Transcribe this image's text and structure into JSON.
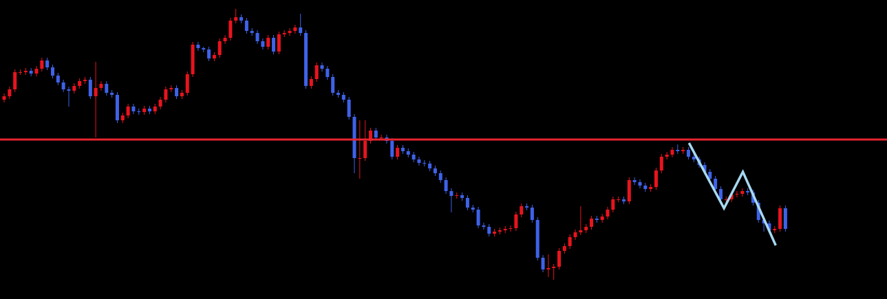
{
  "chart_data": {
    "type": "candlestick",
    "xlim": [
      -0.77,
      163.85
    ],
    "ylim": [
      0,
      435
    ],
    "up_color": "#e8141e",
    "down_color": "#3e62e8",
    "background": "#000000",
    "open": [
      290,
      295,
      305,
      330,
      330,
      332,
      328,
      335,
      347,
      337,
      325,
      315,
      305,
      303,
      310,
      317,
      319,
      295,
      307,
      313,
      300,
      297,
      260,
      267,
      280,
      273,
      272,
      277,
      273,
      280,
      290,
      305,
      307,
      295,
      300,
      327,
      370,
      365,
      363,
      350,
      355,
      375,
      380,
      405,
      410,
      405,
      390,
      387,
      375,
      367,
      380,
      360,
      385,
      387,
      390,
      395,
      387,
      310,
      320,
      340,
      335,
      323,
      300,
      297,
      290,
      265,
      205,
      205,
      230,
      245,
      235,
      235,
      230,
      207,
      220,
      215,
      210,
      203,
      198,
      197,
      190,
      183,
      173,
      157,
      150,
      151,
      147,
      133,
      130,
      107,
      105,
      95,
      98,
      100,
      102,
      103,
      123,
      135,
      133,
      115,
      60,
      43,
      45,
      47,
      70,
      77,
      90,
      97,
      100,
      105,
      117,
      115,
      120,
      130,
      145,
      145,
      142,
      173,
      170,
      165,
      160,
      163,
      187,
      207,
      210,
      217,
      215,
      217,
      207,
      203,
      195,
      185,
      175,
      160,
      145,
      145,
      152,
      153,
      157,
      155,
      140,
      115,
      110,
      100,
      102,
      132
    ],
    "high": [
      299,
      309,
      334,
      334,
      336,
      336,
      339,
      351,
      351,
      341,
      329,
      319,
      309,
      314,
      321,
      323,
      323,
      345,
      317,
      317,
      304,
      301,
      271,
      284,
      284,
      277,
      281,
      281,
      284,
      294,
      309,
      311,
      311,
      304,
      331,
      374,
      374,
      367,
      367,
      359,
      379,
      384,
      409,
      422,
      414,
      409,
      394,
      391,
      379,
      384,
      384,
      389,
      391,
      394,
      399,
      415,
      391,
      324,
      344,
      344,
      339,
      327,
      304,
      301,
      294,
      269,
      260,
      260,
      249,
      249,
      239,
      239,
      234,
      224,
      224,
      219,
      214,
      207,
      202,
      201,
      194,
      187,
      177,
      161,
      155,
      155,
      151,
      137,
      134,
      111,
      109,
      102,
      104,
      106,
      107,
      127,
      139,
      139,
      137,
      119,
      64,
      65,
      51,
      74,
      81,
      94,
      101,
      135,
      109,
      121,
      121,
      124,
      134,
      149,
      149,
      149,
      177,
      177,
      174,
      169,
      167,
      191,
      211,
      214,
      221,
      225,
      221,
      221,
      211,
      207,
      199,
      189,
      179,
      164,
      149,
      156,
      157,
      161,
      161,
      159,
      144,
      119,
      114,
      106,
      136,
      136
    ],
    "low": [
      286,
      291,
      301,
      326,
      326,
      324,
      324,
      331,
      333,
      321,
      311,
      301,
      280,
      299,
      306,
      313,
      291,
      235,
      303,
      296,
      293,
      256,
      256,
      263,
      269,
      268,
      268,
      269,
      269,
      276,
      286,
      301,
      291,
      291,
      296,
      323,
      361,
      359,
      346,
      346,
      351,
      371,
      376,
      401,
      401,
      386,
      383,
      371,
      363,
      363,
      356,
      356,
      381,
      383,
      386,
      383,
      306,
      306,
      316,
      331,
      319,
      296,
      293,
      286,
      261,
      183,
      175,
      201,
      226,
      231,
      231,
      226,
      203,
      203,
      211,
      206,
      199,
      194,
      193,
      186,
      179,
      169,
      153,
      126,
      146,
      143,
      129,
      126,
      103,
      101,
      91,
      91,
      94,
      96,
      98,
      99,
      119,
      129,
      111,
      56,
      39,
      32,
      28,
      43,
      66,
      73,
      86,
      93,
      96,
      101,
      111,
      111,
      116,
      126,
      141,
      138,
      138,
      166,
      161,
      156,
      156,
      159,
      183,
      203,
      206,
      211,
      211,
      203,
      199,
      191,
      181,
      171,
      156,
      141,
      141,
      141,
      148,
      149,
      151,
      136,
      111,
      98,
      96,
      96,
      98,
      98
    ],
    "close": [
      295,
      305,
      330,
      330,
      332,
      328,
      335,
      347,
      337,
      325,
      315,
      305,
      303,
      310,
      317,
      319,
      295,
      307,
      313,
      300,
      297,
      260,
      267,
      280,
      273,
      272,
      277,
      273,
      280,
      290,
      305,
      307,
      295,
      300,
      327,
      370,
      365,
      363,
      350,
      355,
      375,
      380,
      405,
      410,
      405,
      390,
      387,
      375,
      367,
      380,
      360,
      385,
      387,
      390,
      395,
      387,
      310,
      320,
      340,
      335,
      323,
      300,
      297,
      290,
      265,
      205,
      205,
      230,
      245,
      235,
      235,
      230,
      207,
      220,
      215,
      210,
      203,
      198,
      197,
      190,
      183,
      173,
      157,
      150,
      151,
      147,
      133,
      130,
      107,
      105,
      95,
      98,
      100,
      102,
      103,
      123,
      135,
      133,
      115,
      60,
      43,
      45,
      47,
      70,
      77,
      90,
      97,
      100,
      105,
      117,
      115,
      120,
      130,
      145,
      145,
      142,
      173,
      170,
      165,
      160,
      163,
      187,
      207,
      210,
      217,
      215,
      217,
      207,
      203,
      195,
      185,
      175,
      160,
      145,
      145,
      152,
      153,
      157,
      155,
      140,
      115,
      110,
      100,
      102,
      132,
      102
    ],
    "hline": {
      "value": 232,
      "color": "#e8252f"
    },
    "trendline": {
      "color": "#a6d8f0",
      "x": [
        127.1,
        133.6,
        137.1,
        143.2
      ],
      "y": [
        227,
        132,
        185,
        78
      ]
    }
  }
}
